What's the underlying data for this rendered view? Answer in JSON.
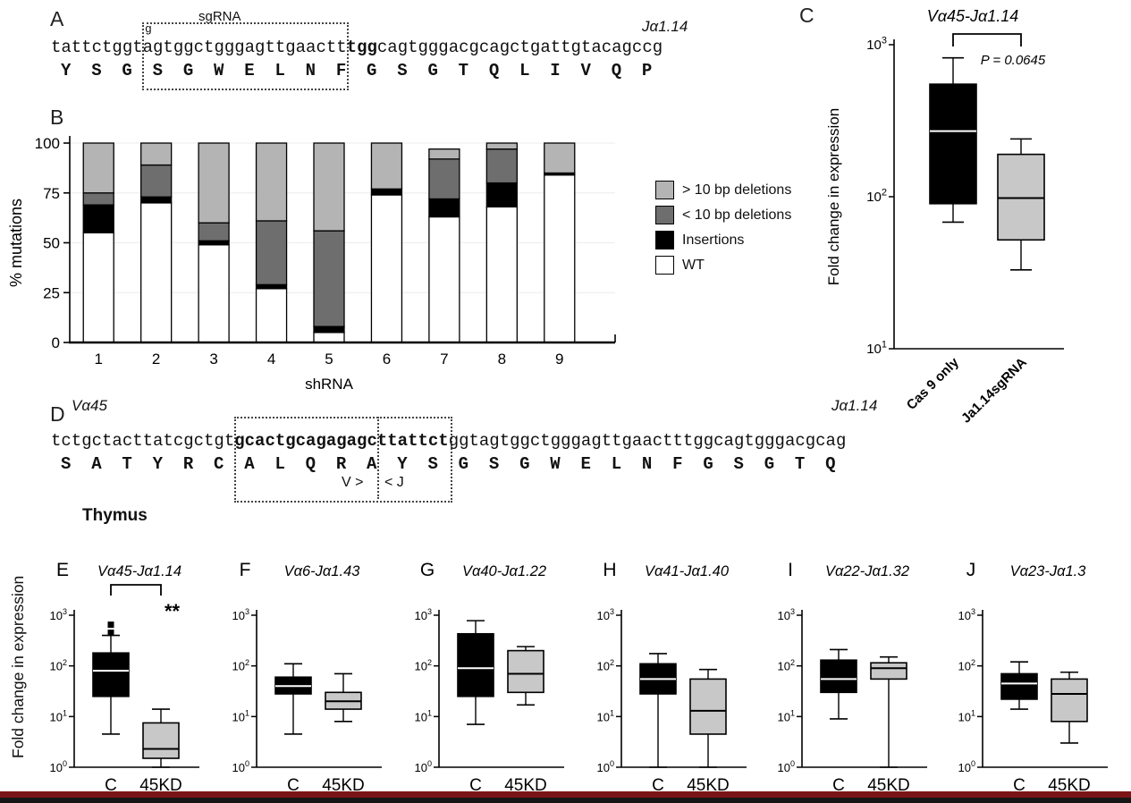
{
  "page": {
    "background": "#ffffff",
    "video_bar_color": "#7b1416",
    "video_bar2_color": "#161616"
  },
  "thymus_label": "Thymus",
  "row_ylabel": "Fold change in expression",
  "panelA": {
    "label": "A",
    "sgRNA_label": "sgRNA",
    "gene_right": "Jα1.14",
    "extra_g": "g",
    "seq_pre": "tattctggt",
    "seq_boxed": "agtggctgggagttgaactt",
    "seq_bold": "tgg",
    "seq_post": "cagtgggacgcagctgattgtacagccg",
    "aa_line": "Y  S  G  S  G  W  E  L  N  F  G  S  G  T  Q  L  I  V  Q  P"
  },
  "panelB": {
    "label": "B"
  },
  "panelC": {
    "label": "C"
  },
  "panelD": {
    "label": "D",
    "gene_left": "Vα45",
    "gene_right": "Jα1.14",
    "seq_pre": "tctgctacttatcgctgt",
    "seq_bold": "gcactgcagagagcttattct",
    "seq_post": "ggtagtggctgggagttgaactttggcagtgggacgcag",
    "aa_line": "S  A  T  Y  R  C  A  L  Q  R  A  Y  S  G  S  G  W  E  L  N  F  G  S  G  T  Q",
    "v_label": "V >",
    "j_label": "< J"
  },
  "chart_data": [
    {
      "id": "B",
      "type": "bar",
      "stacked": true,
      "title": "",
      "xlabel": "shRNA",
      "ylabel": "% mutations",
      "ylim": [
        0,
        100
      ],
      "yticks": [
        0,
        25,
        50,
        75,
        100
      ],
      "categories": [
        "1",
        "2",
        "3",
        "4",
        "5",
        "6",
        "7",
        "8",
        "9"
      ],
      "series": [
        {
          "name": "WT",
          "color": "#ffffff",
          "values": [
            55,
            70,
            49,
            27,
            5,
            74,
            63,
            68,
            84
          ]
        },
        {
          "name": "Insertions",
          "color": "#000000",
          "values": [
            14,
            3,
            2,
            2,
            3,
            3,
            9,
            12,
            1
          ]
        },
        {
          "name": "< 10 bp deletions",
          "color": "#6e6e6e",
          "values": [
            6,
            16,
            9,
            32,
            48,
            0,
            20,
            17,
            0
          ]
        },
        {
          "name": "> 10 bp deletions",
          "color": "#b4b4b4",
          "values": [
            25,
            11,
            40,
            39,
            44,
            23,
            5,
            3,
            15
          ]
        }
      ],
      "legend_order": [
        "> 10 bp deletions",
        "< 10 bp deletions",
        "Insertions",
        "WT"
      ],
      "legend_position": "right"
    },
    {
      "id": "C",
      "type": "box",
      "title": "Vα45-Jα1.14",
      "ylabel": "Fold change in expression",
      "log": true,
      "ylim": [
        10,
        1000
      ],
      "annotation": "P = 0.0645",
      "bracket": true,
      "boxes": [
        {
          "label": "Cas 9 only",
          "fill": "#000000",
          "whisker_low": 68,
          "q1": 90,
          "median": 270,
          "q3": 550,
          "whisker_high": 820
        },
        {
          "label": "Ja1.14sgRNA",
          "fill": "#c8c8c8",
          "whisker_low": 33,
          "q1": 52,
          "median": 98,
          "q3": 190,
          "whisker_high": 240
        }
      ]
    },
    {
      "id": "E",
      "panel_label": "E",
      "type": "box",
      "title": "Vα45-Jα1.14",
      "log": true,
      "ylim": [
        1,
        1000
      ],
      "bracket": true,
      "significance": "**",
      "boxes": [
        {
          "label": "C",
          "fill": "#000000",
          "whisker_low": 4.5,
          "q1": 25,
          "median": 80,
          "q3": 180,
          "whisker_high": 400,
          "outliers": [
            650,
            450
          ]
        },
        {
          "label": "45KD",
          "fill": "#c8c8c8",
          "whisker_low": 1,
          "q1": 1.5,
          "median": 2.3,
          "q3": 7.5,
          "whisker_high": 14
        }
      ]
    },
    {
      "id": "F",
      "panel_label": "F",
      "type": "box",
      "title": "Vα6-Jα1.43",
      "log": true,
      "ylim": [
        1,
        1000
      ],
      "boxes": [
        {
          "label": "C",
          "fill": "#000000",
          "whisker_low": 4.5,
          "q1": 28,
          "median": 40,
          "q3": 60,
          "whisker_high": 110
        },
        {
          "label": "45KD",
          "fill": "#c8c8c8",
          "whisker_low": 8,
          "q1": 14,
          "median": 20,
          "q3": 30,
          "whisker_high": 70
        }
      ]
    },
    {
      "id": "G",
      "panel_label": "G",
      "type": "box",
      "title": "Vα40-Jα1.22",
      "log": true,
      "ylim": [
        1,
        1000
      ],
      "boxes": [
        {
          "label": "C",
          "fill": "#000000",
          "whisker_low": 7,
          "q1": 25,
          "median": 90,
          "q3": 430,
          "whisker_high": 780
        },
        {
          "label": "45KD",
          "fill": "#c8c8c8",
          "whisker_low": 17,
          "q1": 30,
          "median": 70,
          "q3": 200,
          "whisker_high": 240
        }
      ]
    },
    {
      "id": "H",
      "panel_label": "H",
      "type": "box",
      "title": "Vα41-Jα1.40",
      "log": true,
      "ylim": [
        1,
        1000
      ],
      "boxes": [
        {
          "label": "C",
          "fill": "#000000",
          "whisker_low": 1,
          "q1": 28,
          "median": 55,
          "q3": 110,
          "whisker_high": 175
        },
        {
          "label": "45KD",
          "fill": "#c8c8c8",
          "whisker_low": 1,
          "q1": 4.5,
          "median": 13,
          "q3": 55,
          "whisker_high": 85
        }
      ]
    },
    {
      "id": "I",
      "panel_label": "I",
      "type": "box",
      "title": "Vα22-Jα1.32",
      "log": true,
      "ylim": [
        1,
        1000
      ],
      "boxes": [
        {
          "label": "C",
          "fill": "#000000",
          "whisker_low": 9,
          "q1": 30,
          "median": 55,
          "q3": 130,
          "whisker_high": 210
        },
        {
          "label": "45KD",
          "fill": "#c8c8c8",
          "whisker_low": 1,
          "q1": 55,
          "median": 90,
          "q3": 115,
          "whisker_high": 150
        }
      ]
    },
    {
      "id": "J",
      "panel_label": "J",
      "type": "box",
      "title": "Vα23-Jα1.3",
      "log": true,
      "ylim": [
        1,
        1000
      ],
      "boxes": [
        {
          "label": "C",
          "fill": "#000000",
          "whisker_low": 14,
          "q1": 22,
          "median": 45,
          "q3": 70,
          "whisker_high": 120
        },
        {
          "label": "45KD",
          "fill": "#c8c8c8",
          "whisker_low": 3,
          "q1": 8,
          "median": 28,
          "q3": 55,
          "whisker_high": 75
        }
      ]
    }
  ]
}
